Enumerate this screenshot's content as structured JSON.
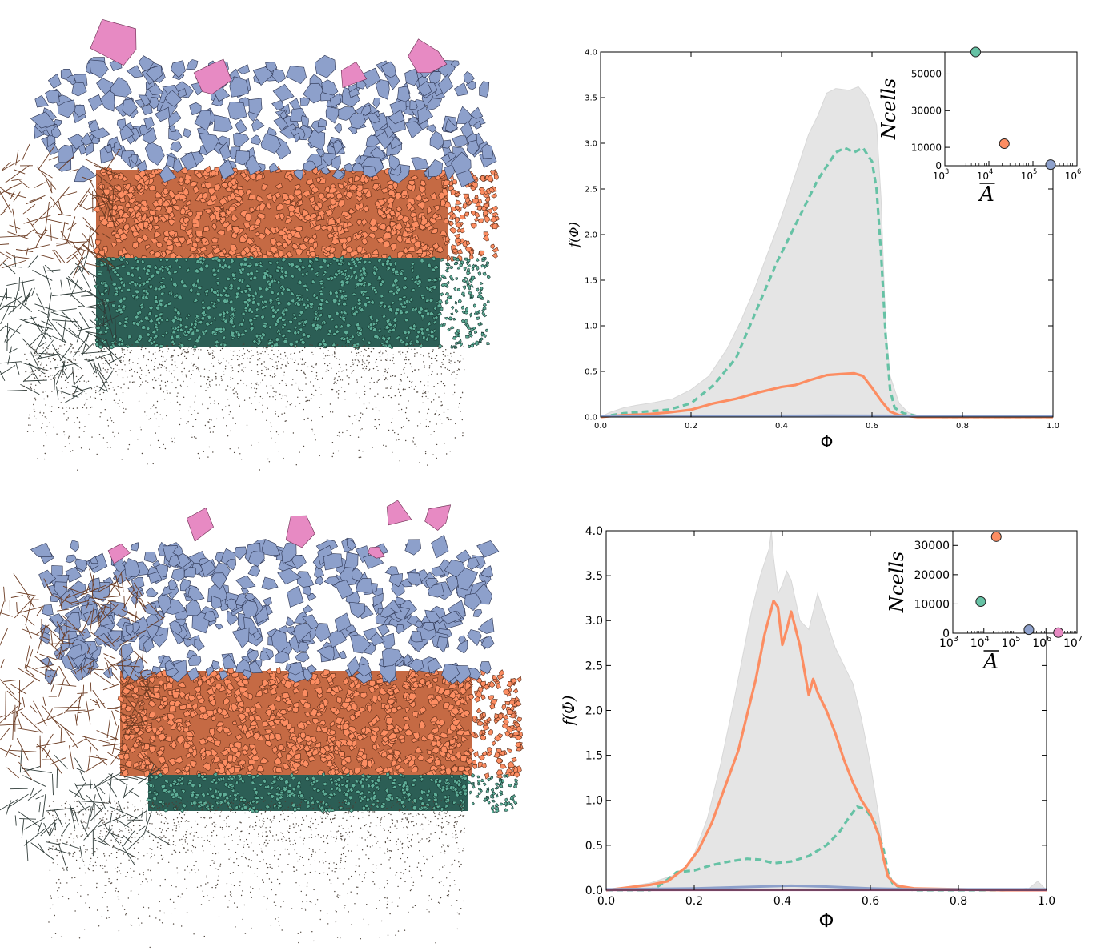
{
  "palette": {
    "green": "#66c2a5",
    "orange": "#fc8d62",
    "blue": "#8da0cb",
    "pink": "#e78ac3",
    "envelope": "#e5e5e5",
    "dark_green": "#1e4d45",
    "dark_orange": "#6b3b22"
  },
  "chart_data": [
    {
      "type": "line",
      "panel": "top",
      "xlabel": "Φ",
      "ylabel": "f(Φ)",
      "xlim": [
        0.0,
        1.0
      ],
      "ylim": [
        0.0,
        4.0
      ],
      "xticks": [
        "0.0",
        "0.2",
        "0.4",
        "0.6",
        "0.8",
        "1.0"
      ],
      "yticks": [
        "0.0",
        "0.5",
        "1.0",
        "1.5",
        "2.0",
        "2.5",
        "3.0",
        "3.5",
        "4.0"
      ],
      "envelope": {
        "x": [
          0.0,
          0.02,
          0.05,
          0.08,
          0.12,
          0.16,
          0.2,
          0.24,
          0.28,
          0.31,
          0.34,
          0.37,
          0.4,
          0.43,
          0.46,
          0.48,
          0.5,
          0.52,
          0.55,
          0.57,
          0.59,
          0.61,
          0.62,
          0.63,
          0.64,
          0.66,
          0.68,
          0.7,
          0.75,
          0.8,
          0.9,
          0.95,
          0.97,
          1.0
        ],
        "values": [
          0.0,
          0.05,
          0.1,
          0.13,
          0.16,
          0.2,
          0.3,
          0.45,
          0.75,
          1.05,
          1.4,
          1.8,
          2.2,
          2.65,
          3.1,
          3.3,
          3.55,
          3.6,
          3.58,
          3.62,
          3.5,
          3.2,
          2.4,
          1.0,
          0.45,
          0.15,
          0.05,
          0.02,
          0.01,
          0.0,
          0.0,
          0.0,
          0.02,
          0.0
        ]
      },
      "series": [
        {
          "color": "green",
          "dash": true,
          "x": [
            0.0,
            0.05,
            0.1,
            0.15,
            0.2,
            0.25,
            0.3,
            0.33,
            0.36,
            0.39,
            0.42,
            0.45,
            0.48,
            0.5,
            0.52,
            0.54,
            0.56,
            0.58,
            0.6,
            0.61,
            0.62,
            0.63,
            0.64,
            0.65,
            0.67,
            0.7,
            0.75,
            0.8,
            0.9,
            1.0
          ],
          "values": [
            0.0,
            0.04,
            0.06,
            0.08,
            0.15,
            0.35,
            0.65,
            1.0,
            1.35,
            1.7,
            2.0,
            2.3,
            2.6,
            2.75,
            2.9,
            2.95,
            2.9,
            2.95,
            2.8,
            2.5,
            1.8,
            0.9,
            0.3,
            0.1,
            0.04,
            0.01,
            0.0,
            0.0,
            0.0,
            0.0
          ]
        },
        {
          "color": "orange",
          "dash": false,
          "x": [
            0.0,
            0.05,
            0.1,
            0.15,
            0.2,
            0.25,
            0.3,
            0.35,
            0.4,
            0.43,
            0.46,
            0.5,
            0.53,
            0.56,
            0.58,
            0.6,
            0.62,
            0.64,
            0.66,
            0.7,
            0.8,
            0.9,
            1.0
          ],
          "values": [
            0.0,
            0.02,
            0.03,
            0.05,
            0.08,
            0.15,
            0.2,
            0.27,
            0.33,
            0.35,
            0.4,
            0.46,
            0.47,
            0.48,
            0.45,
            0.32,
            0.18,
            0.06,
            0.02,
            0.0,
            0.0,
            0.0,
            0.0
          ]
        },
        {
          "color": "blue",
          "dash": false,
          "x": [
            0.0,
            0.5,
            1.0
          ],
          "values": [
            0.01,
            0.015,
            0.01
          ]
        }
      ],
      "inset": {
        "type": "scatter",
        "xlabel": "A",
        "ylabel": "Ncells",
        "xscale": "log",
        "xlim_exp": [
          3,
          6
        ],
        "xticks_exp": [
          "3",
          "4",
          "5",
          "6"
        ],
        "ylim": [
          0,
          62000
        ],
        "yticks": [
          "0",
          "10000",
          "30000",
          "50000"
        ],
        "points": [
          {
            "x_exp": 3.7,
            "y": 62000,
            "color": "green"
          },
          {
            "x_exp": 4.35,
            "y": 12000,
            "color": "orange"
          },
          {
            "x_exp": 5.4,
            "y": 600,
            "color": "blue"
          }
        ]
      }
    },
    {
      "type": "line",
      "panel": "bottom",
      "xlabel": "Φ",
      "ylabel": "f(Φ)",
      "xlim": [
        0.0,
        1.0
      ],
      "ylim": [
        0.0,
        4.0
      ],
      "xticks": [
        "0.0",
        "0.2",
        "0.4",
        "0.6",
        "0.8",
        "1.0"
      ],
      "yticks": [
        "0.0",
        "0.5",
        "1.0",
        "1.5",
        "2.0",
        "2.5",
        "3.0",
        "3.5",
        "4.0"
      ],
      "envelope": {
        "x": [
          0.0,
          0.05,
          0.1,
          0.15,
          0.18,
          0.2,
          0.23,
          0.26,
          0.29,
          0.31,
          0.33,
          0.35,
          0.37,
          0.375,
          0.38,
          0.39,
          0.4,
          0.41,
          0.42,
          0.44,
          0.46,
          0.48,
          0.5,
          0.52,
          0.54,
          0.56,
          0.58,
          0.6,
          0.62,
          0.63,
          0.64,
          0.65,
          0.67,
          0.7,
          0.8,
          0.9,
          0.96,
          0.98,
          1.0
        ],
        "values": [
          0.0,
          0.04,
          0.08,
          0.16,
          0.25,
          0.4,
          0.8,
          1.4,
          2.1,
          2.6,
          3.1,
          3.5,
          3.8,
          4.0,
          3.7,
          3.3,
          3.4,
          3.55,
          3.45,
          3.0,
          2.9,
          3.3,
          3.0,
          2.7,
          2.5,
          2.3,
          1.9,
          1.4,
          0.8,
          0.4,
          0.2,
          0.1,
          0.05,
          0.02,
          0.01,
          0.01,
          0.02,
          0.1,
          0.0
        ]
      },
      "series": [
        {
          "color": "green",
          "dash": true,
          "x": [
            0.0,
            0.1,
            0.12,
            0.14,
            0.16,
            0.2,
            0.24,
            0.28,
            0.32,
            0.35,
            0.38,
            0.42,
            0.46,
            0.5,
            0.53,
            0.55,
            0.57,
            0.59,
            0.61,
            0.63,
            0.64,
            0.65,
            0.67,
            0.7,
            0.8,
            0.9,
            0.96,
            1.0
          ],
          "values": [
            0.0,
            0.0,
            0.05,
            0.12,
            0.2,
            0.22,
            0.28,
            0.32,
            0.35,
            0.34,
            0.3,
            0.32,
            0.38,
            0.5,
            0.65,
            0.8,
            0.93,
            0.9,
            0.75,
            0.45,
            0.2,
            0.08,
            0.02,
            0.0,
            0.0,
            0.0,
            0.01,
            0.0
          ]
        },
        {
          "color": "orange",
          "dash": false,
          "x": [
            0.0,
            0.05,
            0.1,
            0.14,
            0.18,
            0.21,
            0.24,
            0.27,
            0.3,
            0.32,
            0.34,
            0.36,
            0.38,
            0.39,
            0.4,
            0.41,
            0.42,
            0.44,
            0.46,
            0.47,
            0.48,
            0.5,
            0.52,
            0.54,
            0.56,
            0.58,
            0.6,
            0.62,
            0.63,
            0.64,
            0.66,
            0.7,
            0.8,
            0.9,
            1.0
          ],
          "values": [
            0.0,
            0.03,
            0.06,
            0.1,
            0.25,
            0.45,
            0.75,
            1.15,
            1.55,
            1.95,
            2.35,
            2.85,
            3.22,
            3.15,
            2.73,
            2.9,
            3.1,
            2.72,
            2.17,
            2.35,
            2.2,
            2.0,
            1.75,
            1.45,
            1.2,
            1.0,
            0.85,
            0.6,
            0.35,
            0.15,
            0.05,
            0.02,
            0.01,
            0.0,
            0.0
          ]
        },
        {
          "color": "blue",
          "dash": false,
          "x": [
            0.0,
            0.2,
            0.35,
            0.42,
            0.5,
            0.6,
            0.7,
            1.0
          ],
          "values": [
            0.01,
            0.02,
            0.04,
            0.05,
            0.04,
            0.02,
            0.01,
            0.01
          ]
        },
        {
          "color": "pink",
          "dash": false,
          "x": [
            0.0,
            0.5,
            1.0
          ],
          "values": [
            0.003,
            0.004,
            0.003
          ]
        }
      ],
      "inset": {
        "type": "scatter",
        "xlabel": "A",
        "ylabel": "Ncells",
        "xscale": "log",
        "xlim_exp": [
          3,
          7
        ],
        "xticks_exp": [
          "3",
          "4",
          "5",
          "6",
          "7"
        ],
        "ylim": [
          0,
          35000
        ],
        "yticks": [
          "0",
          "10000",
          "20000",
          "30000"
        ],
        "points": [
          {
            "x_exp": 4.4,
            "y": 33000,
            "color": "orange"
          },
          {
            "x_exp": 3.9,
            "y": 10800,
            "color": "green"
          },
          {
            "x_exp": 5.45,
            "y": 1200,
            "color": "blue"
          },
          {
            "x_exp": 6.4,
            "y": 200,
            "color": "pink"
          }
        ]
      }
    }
  ]
}
